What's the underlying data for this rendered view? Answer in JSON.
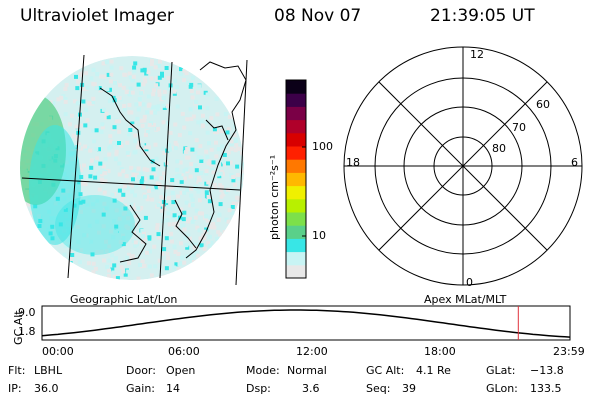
{
  "header": {
    "instrument": "Ultraviolet Imager",
    "date": "08 Nov 07",
    "time": "21:39:05 UT"
  },
  "colorbar": {
    "unit_label": "photon cm⁻²s⁻¹",
    "ticks": [
      {
        "value": 100,
        "label": "100"
      },
      {
        "value": 10,
        "label": "10"
      }
    ],
    "colors": [
      "#e8e8e8",
      "#c8f4f4",
      "#38e6e6",
      "#5ad08a",
      "#7de04a",
      "#b8f000",
      "#f0f000",
      "#ffb800",
      "#ff7800",
      "#ff2000",
      "#d80000",
      "#b0002a",
      "#7a0046",
      "#3c0048",
      "#0b0018"
    ],
    "scale": "log"
  },
  "geo_map": {
    "label": "Geographic Lat/Lon"
  },
  "polar_grid": {
    "label": "Apex MLat/MLT",
    "mlt_labels": [
      "12",
      "18",
      "6",
      "0"
    ],
    "mlat_labels": [
      "60",
      "70",
      "80"
    ]
  },
  "altitude_plot": {
    "ylabel": "GC Alt",
    "yticks": [
      "9.0",
      "1.8"
    ],
    "xticks": [
      "00:00",
      "06:00",
      "12:00",
      "18:00",
      "23:59"
    ],
    "current_time_hours": 21.65
  },
  "status": {
    "row1": [
      {
        "label": "Flt:",
        "value": "LBHL"
      },
      {
        "label": "Door:",
        "value": "Open"
      },
      {
        "label": "Mode:",
        "value": "Normal"
      },
      {
        "label": "GC Alt:",
        "value": "4.1 Re"
      },
      {
        "label": "GLat:",
        "value": "−13.8"
      }
    ],
    "row2": [
      {
        "label": "IP:",
        "value": "36.0"
      },
      {
        "label": "Gain:",
        "value": "14"
      },
      {
        "label": "Dsp:",
        "value": "3.6"
      },
      {
        "label": "Seq:",
        "value": "39"
      },
      {
        "label": "GLon:",
        "value": "133.5"
      }
    ]
  }
}
